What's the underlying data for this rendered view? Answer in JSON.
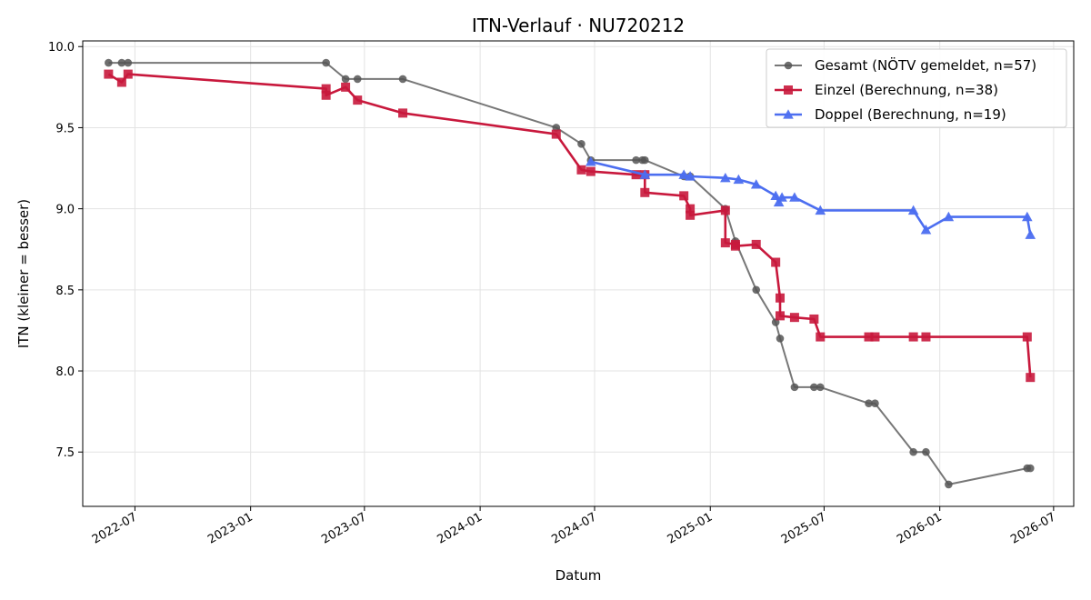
{
  "chart_data": {
    "type": "line",
    "title": "ITN-Verlauf · NU720212",
    "xlabel": "Datum",
    "ylabel": "ITN  (kleiner = besser)",
    "xlim": [
      "2022-04-09",
      "2026-08-02"
    ],
    "ylim": [
      7.165,
      10.035
    ],
    "x_ticks": [
      "2022-07-01",
      "2023-01-01",
      "2023-07-01",
      "2024-01-01",
      "2024-07-01",
      "2025-01-01",
      "2025-07-01",
      "2026-01-01",
      "2026-07-01"
    ],
    "x_tick_labels": [
      "2022-07",
      "2023-01",
      "2023-07",
      "2024-01",
      "2024-07",
      "2025-01",
      "2025-07",
      "2026-01",
      "2026-07"
    ],
    "y_ticks": [
      7.5,
      8.0,
      8.5,
      9.0,
      9.5,
      10.0
    ],
    "y_tick_labels": [
      "7.5",
      "8.0",
      "8.5",
      "9.0",
      "9.5",
      "10.0"
    ],
    "grid": true,
    "legend_position": "top-right",
    "series": [
      {
        "name": "Gesamt (NÖTV gemeldet, n=57)",
        "color": "#555555",
        "marker": "circle",
        "points": [
          [
            "2022-05-20",
            9.9
          ],
          [
            "2022-06-10",
            9.9
          ],
          [
            "2022-06-20",
            9.9
          ],
          [
            "2023-05-01",
            9.9
          ],
          [
            "2023-06-01",
            9.8
          ],
          [
            "2023-06-20",
            9.8
          ],
          [
            "2023-08-31",
            9.8
          ],
          [
            "2024-05-01",
            9.5
          ],
          [
            "2024-06-10",
            9.4
          ],
          [
            "2024-06-25",
            9.3
          ],
          [
            "2024-09-05",
            9.3
          ],
          [
            "2024-09-15",
            9.3
          ],
          [
            "2024-09-19",
            9.3
          ],
          [
            "2024-11-20",
            9.2
          ],
          [
            "2024-11-30",
            9.2
          ],
          [
            "2025-01-25",
            9.0
          ],
          [
            "2025-02-10",
            8.8
          ],
          [
            "2025-03-15",
            8.5
          ],
          [
            "2025-04-15",
            8.3
          ],
          [
            "2025-04-22",
            8.2
          ],
          [
            "2025-05-15",
            7.9
          ],
          [
            "2025-06-15",
            7.9
          ],
          [
            "2025-06-25",
            7.9
          ],
          [
            "2025-09-10",
            7.8
          ],
          [
            "2025-09-20",
            7.8
          ],
          [
            "2025-11-20",
            7.5
          ],
          [
            "2025-12-10",
            7.5
          ],
          [
            "2026-01-15",
            7.3
          ],
          [
            "2026-05-20",
            7.4
          ],
          [
            "2026-05-25",
            7.4
          ]
        ]
      },
      {
        "name": "Einzel (Berechnung, n=38)",
        "color": "#c8183c",
        "marker": "square",
        "points": [
          [
            "2022-05-20",
            9.83
          ],
          [
            "2022-06-10",
            9.78
          ],
          [
            "2022-06-20",
            9.83
          ],
          [
            "2023-05-01",
            9.74
          ],
          [
            "2023-05-01",
            9.7
          ],
          [
            "2023-06-01",
            9.75
          ],
          [
            "2023-06-20",
            9.67
          ],
          [
            "2023-08-31",
            9.59
          ],
          [
            "2024-05-01",
            9.46
          ],
          [
            "2024-06-10",
            9.24
          ],
          [
            "2024-06-25",
            9.23
          ],
          [
            "2024-09-05",
            9.21
          ],
          [
            "2024-09-19",
            9.21
          ],
          [
            "2024-09-19",
            9.1
          ],
          [
            "2024-11-20",
            9.08
          ],
          [
            "2024-11-30",
            9.0
          ],
          [
            "2024-11-30",
            8.96
          ],
          [
            "2025-01-25",
            8.99
          ],
          [
            "2025-01-25",
            8.79
          ],
          [
            "2025-02-10",
            8.78
          ],
          [
            "2025-02-10",
            8.77
          ],
          [
            "2025-03-15",
            8.78
          ],
          [
            "2025-04-15",
            8.67
          ],
          [
            "2025-04-22",
            8.45
          ],
          [
            "2025-04-22",
            8.34
          ],
          [
            "2025-05-15",
            8.33
          ],
          [
            "2025-06-15",
            8.32
          ],
          [
            "2025-06-25",
            8.21
          ],
          [
            "2025-09-10",
            8.21
          ],
          [
            "2025-09-20",
            8.21
          ],
          [
            "2025-11-20",
            8.21
          ],
          [
            "2025-12-10",
            8.21
          ],
          [
            "2026-05-20",
            8.21
          ],
          [
            "2026-05-25",
            7.96
          ]
        ]
      },
      {
        "name": "Doppel (Berechnung, n=19)",
        "color": "#4c6ef0",
        "marker": "triangle",
        "points": [
          [
            "2024-06-25",
            9.29
          ],
          [
            "2024-09-19",
            9.21
          ],
          [
            "2024-11-20",
            9.21
          ],
          [
            "2024-11-30",
            9.2
          ],
          [
            "2025-01-25",
            9.19
          ],
          [
            "2025-02-15",
            9.18
          ],
          [
            "2025-03-15",
            9.15
          ],
          [
            "2025-04-15",
            9.08
          ],
          [
            "2025-04-20",
            9.04
          ],
          [
            "2025-04-25",
            9.07
          ],
          [
            "2025-05-15",
            9.07
          ],
          [
            "2025-06-25",
            8.99
          ],
          [
            "2025-11-20",
            8.99
          ],
          [
            "2025-12-10",
            8.87
          ],
          [
            "2026-01-15",
            8.95
          ],
          [
            "2026-05-20",
            8.95
          ],
          [
            "2026-05-25",
            8.84
          ]
        ]
      }
    ]
  }
}
